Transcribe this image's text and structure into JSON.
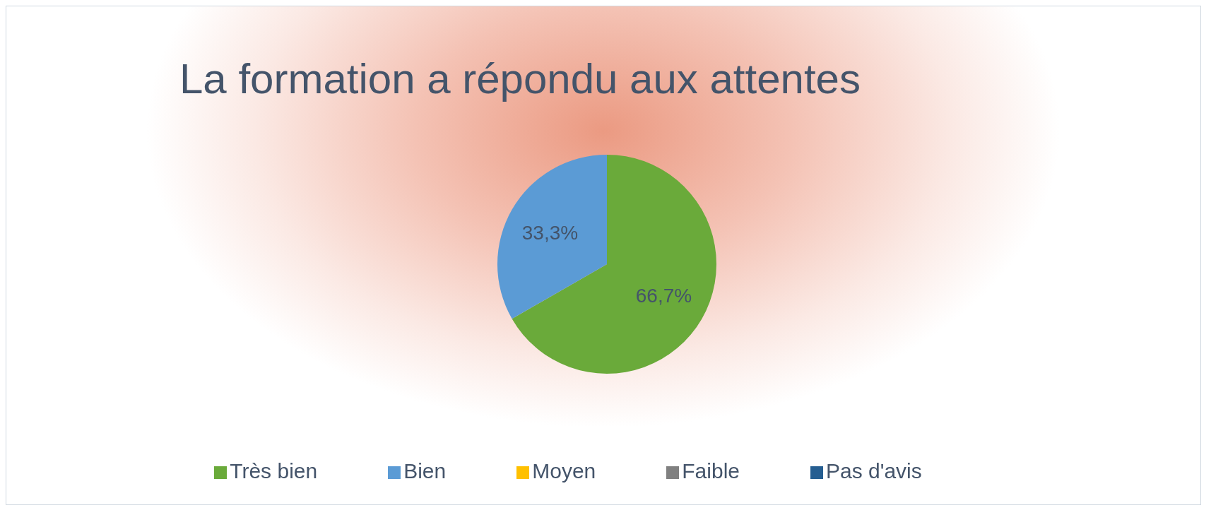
{
  "chart_data": {
    "type": "pie",
    "title": "La formation a répondu aux attentes",
    "categories": [
      "Très bien",
      "Bien",
      "Moyen",
      "Faible",
      "Pas d'avis"
    ],
    "values": [
      66.7,
      33.3,
      0,
      0,
      0
    ],
    "colors": [
      "#6aaa3a",
      "#5b9bd5",
      "#ffc000",
      "#808080",
      "#255e91"
    ],
    "value_labels": [
      "66,7%",
      "33,3%",
      null,
      null,
      null
    ],
    "legend": "bottom"
  }
}
